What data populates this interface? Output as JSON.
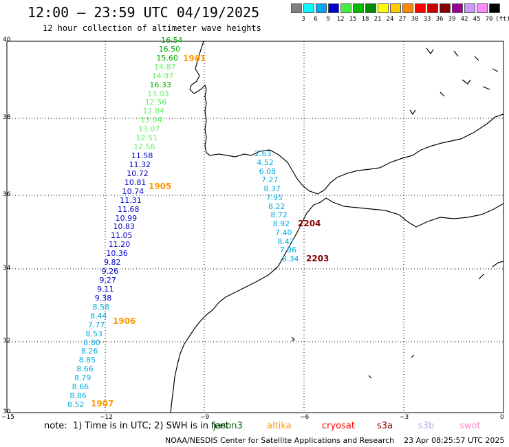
{
  "header": {
    "title": "12:00 — 23:59 UTC 04/19/2025",
    "subtitle": "12 hour collection of altimeter wave heights"
  },
  "scale": {
    "labels": [
      "3",
      "6",
      "9",
      "12",
      "15",
      "18",
      "21",
      "24",
      "27",
      "30",
      "33",
      "36",
      "39",
      "42",
      "45",
      "70"
    ],
    "unit": "(ft)",
    "colors": [
      "#808080",
      "#00ffff",
      "#00aaee",
      "#0000cc",
      "#44ee44",
      "#00bb00",
      "#008800",
      "#ffff00",
      "#ffcc00",
      "#ff8800",
      "#ff0000",
      "#cc0000",
      "#880000",
      "#990099",
      "#cc99ff",
      "#ff88ff",
      "#000000"
    ]
  },
  "axes": {
    "x_ticks": [
      "−15",
      "−12",
      "−9",
      "−6",
      "−3",
      "0"
    ],
    "y_ticks": [
      "40",
      "38",
      "36",
      "34",
      "32",
      "30"
    ]
  },
  "passes": [
    {
      "time": "1901",
      "color": "#ff9900"
    },
    {
      "time": "1905",
      "color": "#ff9900"
    },
    {
      "time": "1906",
      "color": "#ff9900"
    },
    {
      "time": "1907",
      "color": "#ff9900"
    },
    {
      "time": "2204",
      "color": "#880000"
    },
    {
      "time": "2203",
      "color": "#880000"
    }
  ],
  "track_a": [
    {
      "v": "16.54",
      "c": "#00aa00"
    },
    {
      "v": "16.50",
      "c": "#00aa00"
    },
    {
      "v": "15.60",
      "c": "#00aa00"
    },
    {
      "v": "14.87",
      "c": "#66ee66"
    },
    {
      "v": "14.97",
      "c": "#66ee66"
    },
    {
      "v": "16.33",
      "c": "#00aa00"
    },
    {
      "v": "13.03",
      "c": "#66ee66"
    },
    {
      "v": "12.56",
      "c": "#66ee66"
    },
    {
      "v": "12.84",
      "c": "#66ee66"
    },
    {
      "v": "13.04",
      "c": "#66ee66"
    },
    {
      "v": "13.07",
      "c": "#66ee66"
    },
    {
      "v": "12.51",
      "c": "#66ee66"
    },
    {
      "v": "12.56",
      "c": "#66ee66"
    },
    {
      "v": "11.58",
      "c": "#0000cc"
    },
    {
      "v": "11.32",
      "c": "#0000cc"
    },
    {
      "v": "10.72",
      "c": "#0000cc"
    },
    {
      "v": "10.81",
      "c": "#0000cc"
    },
    {
      "v": "10.74",
      "c": "#0000cc"
    },
    {
      "v": "11.31",
      "c": "#0000cc"
    },
    {
      "v": "11.68",
      "c": "#0000cc"
    },
    {
      "v": "10.99",
      "c": "#0000cc"
    },
    {
      "v": "10.83",
      "c": "#0000cc"
    },
    {
      "v": "11.05",
      "c": "#0000cc"
    },
    {
      "v": "11.20",
      "c": "#0000cc"
    },
    {
      "v": "10.36",
      "c": "#0000cc"
    },
    {
      "v": "9.82",
      "c": "#0000cc"
    },
    {
      "v": "9.26",
      "c": "#0000cc"
    },
    {
      "v": "9.27",
      "c": "#0000cc"
    },
    {
      "v": "9.11",
      "c": "#0000cc"
    },
    {
      "v": "9.38",
      "c": "#0000cc"
    },
    {
      "v": "8.58",
      "c": "#00aadd"
    },
    {
      "v": "8.44",
      "c": "#00aadd"
    },
    {
      "v": "7.77",
      "c": "#00aadd"
    },
    {
      "v": "8.53",
      "c": "#00aadd"
    },
    {
      "v": "8.80",
      "c": "#00aadd"
    },
    {
      "v": "8.26",
      "c": "#00aadd"
    },
    {
      "v": "8.85",
      "c": "#00aadd"
    },
    {
      "v": "8.66",
      "c": "#00aadd"
    },
    {
      "v": "8.79",
      "c": "#00aadd"
    },
    {
      "v": "8.66",
      "c": "#00aadd"
    },
    {
      "v": "8.86",
      "c": "#00aadd"
    },
    {
      "v": "8.52",
      "c": "#00aadd"
    }
  ],
  "track_b": [
    {
      "v": "2.63",
      "c": "#00aadd"
    },
    {
      "v": "4.52",
      "c": "#00aadd"
    },
    {
      "v": "6.08",
      "c": "#00aadd"
    },
    {
      "v": "7.27",
      "c": "#00aadd"
    },
    {
      "v": "8.37",
      "c": "#00aadd"
    },
    {
      "v": "7.95",
      "c": "#00aadd"
    },
    {
      "v": "8.22",
      "c": "#00aadd"
    },
    {
      "v": "8.72",
      "c": "#00aadd"
    },
    {
      "v": "8.92",
      "c": "#00aadd"
    },
    {
      "v": "7.40",
      "c": "#00aadd"
    },
    {
      "v": "8.47",
      "c": "#00aadd"
    },
    {
      "v": "7.96",
      "c": "#00aadd"
    },
    {
      "v": "8.34",
      "c": "#00aadd"
    }
  ],
  "note": "note:  1) Time is in UTC; 2) SWH is in feet",
  "legend": [
    {
      "label": "jason3",
      "color": "#006600"
    },
    {
      "label": "altika",
      "color": "#ff9900"
    },
    {
      "label": "cryosat",
      "color": "#ff0000"
    },
    {
      "label": "s3a",
      "color": "#880000"
    },
    {
      "label": "s3b",
      "color": "#bbaaee"
    },
    {
      "label": "swot",
      "color": "#ff88cc"
    }
  ],
  "credit": "NOAA/NESDIS Center for Satellite Applications and Research    23 Apr 08:25:57 UTC 2025"
}
